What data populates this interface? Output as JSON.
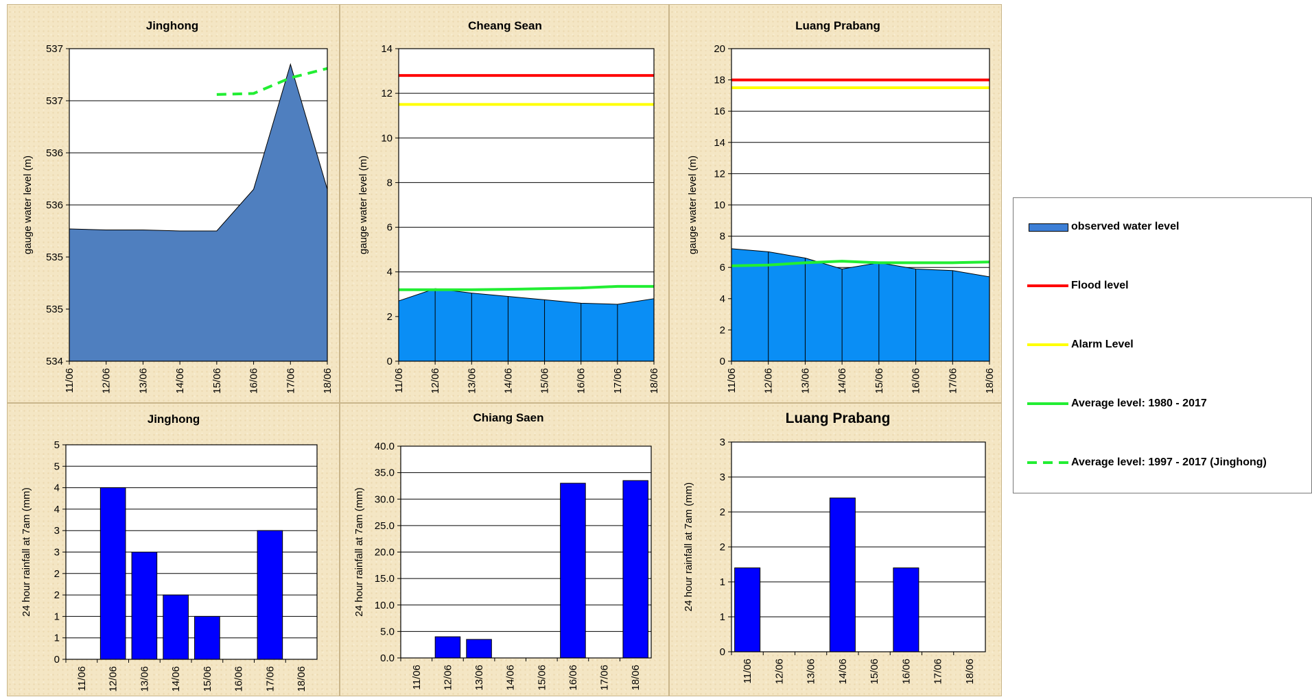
{
  "colors": {
    "panel_bg": "#f4e6c4",
    "area_jinghong": "#4f7fbf",
    "area_observed": "#0a8ef5",
    "flood": "#ff0000",
    "alarm": "#ffff00",
    "average": "#22ee33",
    "rain_bar": "#0000ff"
  },
  "legend": {
    "observed": "observed water level",
    "flood": "Flood level",
    "alarm": "Alarm Level",
    "avg_long": "Average level: 1980 - 2017",
    "avg_jinghong": "Average level:  1997 - 2017 (Jinghong)"
  },
  "chart_data": [
    {
      "type": "area",
      "title": "Jinghong",
      "ylabel": "gauge  water level (m)",
      "ylim": [
        534.0,
        537.0
      ],
      "yticks": [
        534.0,
        534.5,
        535.0,
        535.5,
        536.0,
        536.5,
        537.0
      ],
      "yticklabels": [
        "534",
        "535",
        "535",
        "536",
        "536",
        "537",
        "537"
      ],
      "categories": [
        "11/06",
        "12/06",
        "13/06",
        "14/06",
        "15/06",
        "16/06",
        "17/06",
        "18/06"
      ],
      "series": [
        {
          "name": "observed water level",
          "values": [
            535.27,
            535.26,
            535.26,
            535.25,
            535.25,
            535.65,
            536.85,
            535.65
          ]
        },
        {
          "name": "Average level:  1997 - 2017 (Jinghong)",
          "values": [
            null,
            null,
            null,
            null,
            536.56,
            536.57,
            536.72,
            536.81
          ]
        }
      ]
    },
    {
      "type": "area",
      "title": "Cheang Sean",
      "ylabel": "gauge  water level (m)",
      "ylim": [
        0,
        14
      ],
      "yticks": [
        0,
        2,
        4,
        6,
        8,
        10,
        12,
        14
      ],
      "yticklabels": [
        "0",
        "2",
        "4",
        "6",
        "8",
        "10",
        "12",
        "14"
      ],
      "categories": [
        "11/06",
        "12/06",
        "13/06",
        "14/06",
        "15/06",
        "16/06",
        "17/06",
        "18/06"
      ],
      "series": [
        {
          "name": "observed water level",
          "values": [
            2.7,
            3.25,
            3.05,
            2.9,
            2.75,
            2.6,
            2.55,
            2.8
          ]
        },
        {
          "name": "Flood level",
          "values": [
            12.8,
            12.8,
            12.8,
            12.8,
            12.8,
            12.8,
            12.8,
            12.8
          ]
        },
        {
          "name": "Alarm Level",
          "values": [
            11.5,
            11.5,
            11.5,
            11.5,
            11.5,
            11.5,
            11.5,
            11.5
          ]
        },
        {
          "name": "Average level: 1980 - 2017",
          "values": [
            3.2,
            3.2,
            3.2,
            3.22,
            3.25,
            3.28,
            3.35,
            3.35
          ]
        }
      ]
    },
    {
      "type": "area",
      "title": "Luang Prabang",
      "ylabel": "gauge  water level (m)",
      "ylim": [
        0,
        20
      ],
      "yticks": [
        0,
        2,
        4,
        6,
        8,
        10,
        12,
        14,
        16,
        18,
        20
      ],
      "yticklabels": [
        "0",
        "2",
        "4",
        "6",
        "8",
        "10",
        "12",
        "14",
        "16",
        "18",
        "20"
      ],
      "categories": [
        "11/06",
        "12/06",
        "13/06",
        "14/06",
        "15/06",
        "16/06",
        "17/06",
        "18/06"
      ],
      "series": [
        {
          "name": "observed water level",
          "values": [
            7.2,
            7.0,
            6.6,
            5.9,
            6.3,
            5.9,
            5.8,
            5.4
          ]
        },
        {
          "name": "Flood level",
          "values": [
            18.0,
            18.0,
            18.0,
            18.0,
            18.0,
            18.0,
            18.0,
            18.0
          ]
        },
        {
          "name": "Alarm Level",
          "values": [
            17.5,
            17.5,
            17.5,
            17.5,
            17.5,
            17.5,
            17.5,
            17.5
          ]
        },
        {
          "name": "Average level: 1980 - 2017",
          "values": [
            6.1,
            6.15,
            6.3,
            6.4,
            6.3,
            6.3,
            6.3,
            6.35
          ]
        }
      ]
    },
    {
      "type": "bar",
      "title": "Jinghong",
      "ylabel": "24 hour rainfall at 7am (mm)",
      "ylim": [
        0,
        5
      ],
      "yticks": [
        0,
        0.5,
        1,
        1.5,
        2,
        2.5,
        3,
        3.5,
        4,
        4.5,
        5
      ],
      "yticklabels": [
        "0",
        "1",
        "1",
        "2",
        "2",
        "3",
        "3",
        "4",
        "4",
        "5",
        "5"
      ],
      "categories": [
        "11/06",
        "12/06",
        "13/06",
        "14/06",
        "15/06",
        "16/06",
        "17/06",
        "18/06"
      ],
      "values": [
        0,
        4.0,
        2.5,
        1.5,
        1.0,
        0,
        3.0,
        0
      ]
    },
    {
      "type": "bar",
      "title": "Chiang Saen",
      "ylabel": "24 hour rainfall at 7am (mm)",
      "ylim": [
        0,
        40
      ],
      "yticks": [
        0,
        5,
        10,
        15,
        20,
        25,
        30,
        35,
        40
      ],
      "yticklabels": [
        "0.0",
        "5.0",
        "10.0",
        "15.0",
        "20.0",
        "25.0",
        "30.0",
        "35.0",
        "40.0"
      ],
      "categories": [
        "11/06",
        "12/06",
        "13/06",
        "14/06",
        "15/06",
        "16/06",
        "17/06",
        "18/06"
      ],
      "values": [
        0,
        4.0,
        3.5,
        0,
        0,
        33.0,
        0,
        33.5
      ]
    },
    {
      "type": "bar",
      "title": "Luang Prabang",
      "ylabel": "24 hour rainfall at 7am (mm)",
      "ylim": [
        0,
        3
      ],
      "yticks": [
        0,
        0.5,
        1,
        1.5,
        2,
        2.5,
        3
      ],
      "yticklabels": [
        "0",
        "1",
        "1",
        "2",
        "2",
        "3",
        "3"
      ],
      "categories": [
        "11/06",
        "12/06",
        "13/06",
        "14/06",
        "15/06",
        "16/06",
        "17/06",
        "18/06"
      ],
      "values": [
        1.2,
        0,
        0,
        2.2,
        0,
        1.2,
        0,
        0
      ]
    }
  ]
}
